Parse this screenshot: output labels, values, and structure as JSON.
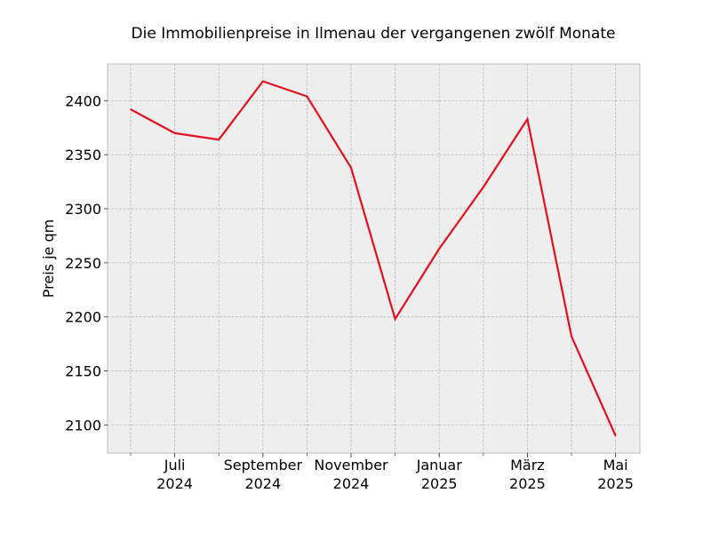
{
  "chart_data": {
    "type": "line",
    "title": "Die Immobilienpreise in Ilmenau der vergangenen zwölf Monate",
    "xlabel": "",
    "ylabel": "Preis je qm",
    "x": [
      "2024-06",
      "2024-07",
      "2024-08",
      "2024-09",
      "2024-10",
      "2024-11",
      "2024-12",
      "2025-01",
      "2025-02",
      "2025-03",
      "2025-04",
      "2025-05"
    ],
    "series": [
      {
        "values": [
          2392,
          2370,
          2364,
          2418,
          2404,
          2338,
          2198,
          2263,
          2320,
          2383,
          2182,
          2090
        ]
      }
    ],
    "x_ticks": [
      {
        "x": "2024-07",
        "label": [
          "Juli",
          "2024"
        ]
      },
      {
        "x": "2024-09",
        "label": [
          "September",
          "2024"
        ]
      },
      {
        "x": "2024-11",
        "label": [
          "November",
          "2024"
        ]
      },
      {
        "x": "2025-01",
        "label": [
          "Januar",
          "2025"
        ]
      },
      {
        "x": "2025-03",
        "label": [
          "März",
          "2025"
        ]
      },
      {
        "x": "2025-05",
        "label": [
          "Mai",
          "2025"
        ]
      }
    ],
    "yticks": [
      2100,
      2150,
      2200,
      2250,
      2300,
      2350,
      2400
    ],
    "ylim": [
      2074,
      2434
    ],
    "grid": true,
    "colors": {
      "line": "#e0101e",
      "plot_bg": "#eeeeee",
      "grid": "#b5b5b5",
      "frame": "#bcbcbc"
    }
  }
}
